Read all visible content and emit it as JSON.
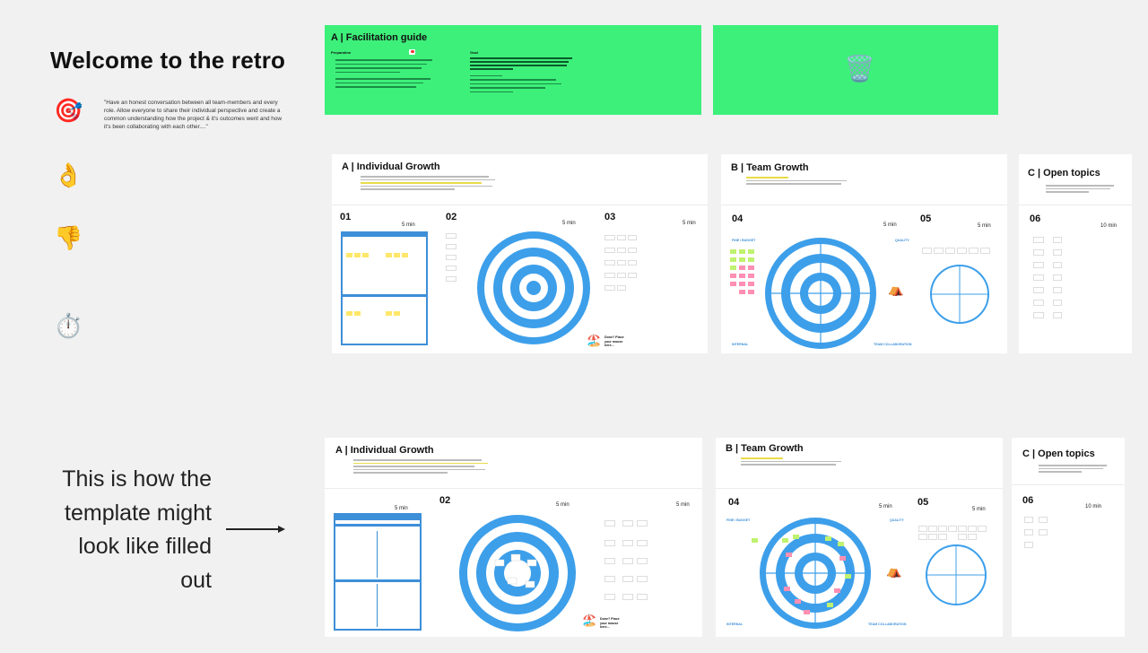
{
  "header": {
    "title": "Welcome to the retro",
    "quote": "\"Have an honest conversation between all team-members and every role. Allow everyone to share their individual perspective and create a common understanding how the project & it's outcomes went and how it's been collaborating with each other....\""
  },
  "left_icons": [
    "target-icon",
    "ok-hand-icon",
    "thumbs-down-icon",
    "stopwatch-icon"
  ],
  "emojis": {
    "target": "🎯",
    "ok": "👌",
    "thumbs_down": "👎",
    "stopwatch": "⏱️",
    "trash": "🗑️",
    "surf": "🏖️"
  },
  "facilitation": {
    "title": "A | Facilitation guide",
    "col1_title": "Preparation",
    "col2_title": "Goal"
  },
  "row1": {
    "individual": {
      "title": "A | Individual Growth",
      "s1": "01",
      "s2": "02",
      "s3": "03",
      "time": "5 min",
      "done": "Done? Place your mouse here..."
    },
    "team": {
      "title": "B | Team Growth",
      "s4": "04",
      "s5": "05",
      "time": "5 min",
      "internal": "INTERNAL",
      "collab": "TEAM COLLABORATION",
      "fine_label": "FINE / BUDGET",
      "quality": "QUALITY"
    },
    "open": {
      "title": "C | Open topics",
      "s6": "06",
      "time": "10 min"
    }
  },
  "row2": {
    "individual": {
      "title": "A | Individual Growth",
      "s2": "02",
      "time": "5 min",
      "done": "Done? Place your mouse here..."
    },
    "team": {
      "title": "B | Team Growth",
      "s4": "04",
      "s5": "05",
      "time": "5 min",
      "internal": "INTERNAL",
      "collab": "TEAM COLLABORATION",
      "fine_label": "FINE / BUDGET",
      "quality": "QUALITY"
    },
    "open": {
      "title": "C | Open topics",
      "s6": "06",
      "time": "10 min"
    }
  },
  "bottom_text": {
    "line1": "This is how the",
    "line2": "template might",
    "line3": "look like filled",
    "line4": "out"
  },
  "colors": {
    "green": "#3df07a",
    "blue": "#3d8fd8",
    "sticky_yellow": "#ffe76a",
    "background": "#f1f1f1"
  }
}
